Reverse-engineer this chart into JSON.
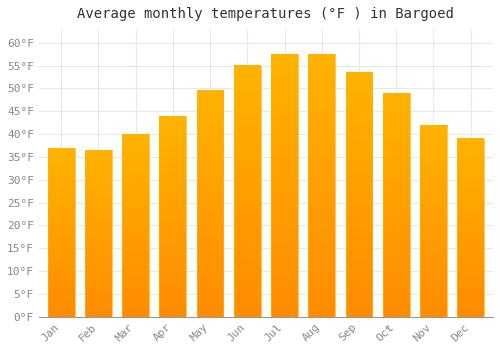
{
  "title": "Average monthly temperatures (°F ) in Bargoed",
  "months": [
    "Jan",
    "Feb",
    "Mar",
    "Apr",
    "May",
    "Jun",
    "Jul",
    "Aug",
    "Sep",
    "Oct",
    "Nov",
    "Dec"
  ],
  "values": [
    37,
    36.5,
    40,
    44,
    49.5,
    55,
    57.5,
    57.5,
    53.5,
    49,
    42,
    39
  ],
  "bar_color_top": "#FFB300",
  "bar_color_bottom": "#FF8C00",
  "ylim": [
    0,
    63
  ],
  "yticks": [
    0,
    5,
    10,
    15,
    20,
    25,
    30,
    35,
    40,
    45,
    50,
    55,
    60
  ],
  "background_color": "#ffffff",
  "grid_color": "#e8e8e8",
  "title_fontsize": 10,
  "tick_fontsize": 8,
  "title_color": "#333333",
  "tick_color": "#888888"
}
